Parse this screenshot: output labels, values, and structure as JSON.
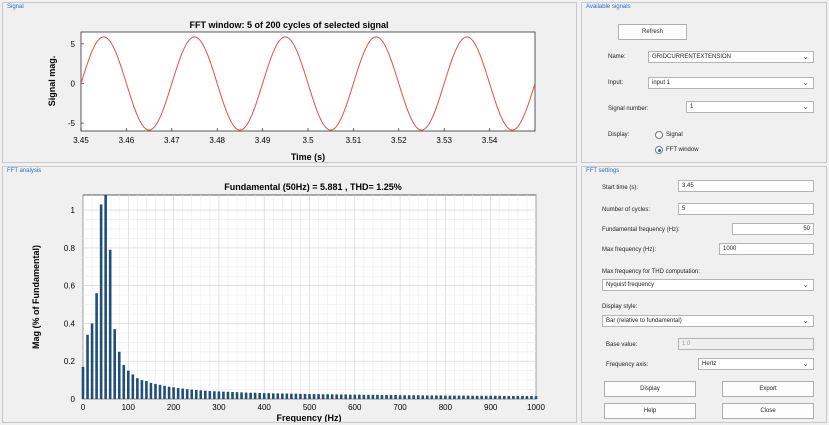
{
  "panels": {
    "signal_title": "Signal",
    "available_title": "Available signals",
    "fft_analysis_title": "FFT analysis",
    "fft_settings_title": "FFT settings"
  },
  "top_chart": {
    "title": "FFT window: 5 of 200 cycles of selected signal",
    "xlabel": "Time (s)",
    "ylabel": "Signal mag.",
    "xticks": [
      "3.45",
      "3.46",
      "3.47",
      "3.48",
      "3.49",
      "3.5",
      "3.51",
      "3.52",
      "3.53",
      "3.54"
    ],
    "yticks": [
      "5",
      "0",
      "-5"
    ]
  },
  "bottom_chart": {
    "title": "Fundamental (50Hz) = 5.881 , THD= 1.25%",
    "xlabel": "Frequency (Hz)",
    "ylabel": "Mag (% of Fundamental)",
    "xticks": [
      "0",
      "100",
      "200",
      "300",
      "400",
      "500",
      "600",
      "700",
      "800",
      "900",
      "1000"
    ],
    "yticks": [
      "0",
      "0.2",
      "0.4",
      "0.6",
      "0.8",
      "1"
    ]
  },
  "chart_data": [
    {
      "type": "line",
      "title": "FFT window: 5 of 200 cycles of selected signal",
      "xlabel": "Time (s)",
      "ylabel": "Signal mag.",
      "xlim": [
        3.45,
        3.55
      ],
      "ylim": [
        -6,
        6.5
      ],
      "series": [
        {
          "amplitude": 5.881,
          "frequency_hz": 50,
          "peak_time_s": 3.455,
          "color": "#d9534f"
        }
      ],
      "grid": false
    },
    {
      "type": "bar",
      "title": "Fundamental (50Hz) = 5.881 , THD= 1.25%",
      "xlabel": "Frequency (Hz)",
      "ylabel": "Mag (% of Fundamental)",
      "xlim": [
        0,
        1000
      ],
      "ylim": [
        0,
        1.08
      ],
      "x": [
        0,
        10,
        20,
        30,
        40,
        50,
        60,
        70,
        80,
        90,
        100,
        110,
        120,
        130,
        140,
        150,
        160,
        170,
        180,
        190,
        200,
        210,
        220,
        230,
        240,
        250,
        260,
        270,
        280,
        290,
        300,
        310,
        320,
        330,
        340,
        350,
        360,
        370,
        380,
        390,
        400,
        410,
        420,
        430,
        440,
        450,
        460,
        470,
        480,
        490,
        500,
        510,
        520,
        530,
        540,
        550,
        560,
        570,
        580,
        590,
        600,
        610,
        620,
        630,
        640,
        650,
        660,
        670,
        680,
        690,
        700,
        710,
        720,
        730,
        740,
        750,
        760,
        770,
        780,
        790,
        800,
        810,
        820,
        830,
        840,
        850,
        860,
        870,
        880,
        890,
        900,
        910,
        920,
        930,
        940,
        950,
        960,
        970,
        980,
        990,
        1000
      ],
      "values": [
        0.17,
        0.34,
        0.4,
        0.56,
        1.03,
        1.08,
        0.79,
        0.37,
        0.25,
        0.18,
        0.15,
        0.13,
        0.11,
        0.1,
        0.095,
        0.085,
        0.08,
        0.075,
        0.07,
        0.065,
        0.062,
        0.058,
        0.055,
        0.052,
        0.05,
        0.048,
        0.046,
        0.044,
        0.042,
        0.041,
        0.04,
        0.039,
        0.038,
        0.037,
        0.036,
        0.035,
        0.034,
        0.033,
        0.033,
        0.032,
        0.031,
        0.031,
        0.03,
        0.03,
        0.029,
        0.029,
        0.028,
        0.028,
        0.027,
        0.027,
        0.026,
        0.026,
        0.026,
        0.025,
        0.025,
        0.025,
        0.024,
        0.024,
        0.024,
        0.023,
        0.023,
        0.023,
        0.022,
        0.022,
        0.022,
        0.022,
        0.021,
        0.021,
        0.021,
        0.021,
        0.02,
        0.02,
        0.02,
        0.02,
        0.02,
        0.019,
        0.019,
        0.019,
        0.019,
        0.019,
        0.018,
        0.018,
        0.018,
        0.018,
        0.018,
        0.018,
        0.017,
        0.017,
        0.017,
        0.017,
        0.017,
        0.017,
        0.017,
        0.016,
        0.016,
        0.016,
        0.016,
        0.016,
        0.016,
        0.016,
        0.015
      ],
      "bar_color": "#1f4e79",
      "grid": true
    }
  ],
  "available_signals": {
    "refresh_label": "Refresh",
    "name_label": "Name:",
    "name_value": "GRIDCURRENTEXTENSION",
    "input_label": "Input:",
    "input_value": "input 1",
    "signal_number_label": "Signal number:",
    "signal_number_value": "1",
    "display_label": "Display:",
    "radio_signal_label": "Signal",
    "radio_fft_label": "FFT window"
  },
  "fft_settings": {
    "start_time_label": "Start time (s):",
    "start_time_value": "3.45",
    "cycles_label": "Number of cycles:",
    "cycles_value": "5",
    "fund_freq_label": "Fundamental frequency (Hz):",
    "fund_freq_value": "50",
    "max_freq_label": "Max frequency (Hz):",
    "max_freq_value": "1000",
    "thd_label": "Max frequency for THD computation:",
    "thd_value": "Nyquist frequency",
    "style_label": "Display style:",
    "style_value": "Bar (relative to fundamental)",
    "base_label": "Base value:",
    "base_value": "1.0",
    "freq_axis_label": "Frequency axis:",
    "freq_axis_value": "Hertz",
    "display_btn": "Display",
    "export_btn": "Export",
    "help_btn": "Help",
    "close_btn": "Close"
  }
}
